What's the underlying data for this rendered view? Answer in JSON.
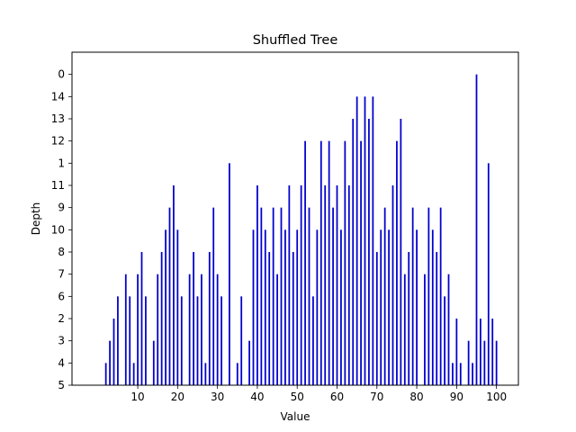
{
  "chart_data": {
    "type": "bar",
    "title": "Shuffled Tree",
    "xlabel": "Value",
    "ylabel": "Depth",
    "bar_color": "#0000cc",
    "grid": false,
    "xlim": [
      -6.5,
      105.5
    ],
    "xticks": [
      10,
      20,
      30,
      40,
      50,
      60,
      70,
      80,
      90,
      100
    ],
    "y_categories": [
      "5",
      "4",
      "3",
      "2",
      "6",
      "7",
      "8",
      "10",
      "9",
      "11",
      "1",
      "12",
      "13",
      "14",
      "0"
    ],
    "points": [
      {
        "x": 2,
        "y": "4"
      },
      {
        "x": 3,
        "y": "3"
      },
      {
        "x": 4,
        "y": "2"
      },
      {
        "x": 5,
        "y": "6"
      },
      {
        "x": 7,
        "y": "7"
      },
      {
        "x": 8,
        "y": "6"
      },
      {
        "x": 9,
        "y": "4"
      },
      {
        "x": 10,
        "y": "7"
      },
      {
        "x": 11,
        "y": "8"
      },
      {
        "x": 12,
        "y": "6"
      },
      {
        "x": 14,
        "y": "3"
      },
      {
        "x": 15,
        "y": "7"
      },
      {
        "x": 16,
        "y": "8"
      },
      {
        "x": 17,
        "y": "10"
      },
      {
        "x": 18,
        "y": "9"
      },
      {
        "x": 19,
        "y": "11"
      },
      {
        "x": 20,
        "y": "10"
      },
      {
        "x": 21,
        "y": "6"
      },
      {
        "x": 23,
        "y": "7"
      },
      {
        "x": 24,
        "y": "8"
      },
      {
        "x": 25,
        "y": "6"
      },
      {
        "x": 26,
        "y": "7"
      },
      {
        "x": 27,
        "y": "4"
      },
      {
        "x": 28,
        "y": "8"
      },
      {
        "x": 29,
        "y": "9"
      },
      {
        "x": 30,
        "y": "7"
      },
      {
        "x": 31,
        "y": "6"
      },
      {
        "x": 33,
        "y": "1"
      },
      {
        "x": 35,
        "y": "4"
      },
      {
        "x": 36,
        "y": "6"
      },
      {
        "x": 38,
        "y": "3"
      },
      {
        "x": 39,
        "y": "10"
      },
      {
        "x": 40,
        "y": "11"
      },
      {
        "x": 41,
        "y": "9"
      },
      {
        "x": 42,
        "y": "10"
      },
      {
        "x": 43,
        "y": "8"
      },
      {
        "x": 44,
        "y": "9"
      },
      {
        "x": 45,
        "y": "7"
      },
      {
        "x": 46,
        "y": "9"
      },
      {
        "x": 47,
        "y": "10"
      },
      {
        "x": 48,
        "y": "11"
      },
      {
        "x": 49,
        "y": "8"
      },
      {
        "x": 50,
        "y": "10"
      },
      {
        "x": 51,
        "y": "11"
      },
      {
        "x": 52,
        "y": "12"
      },
      {
        "x": 53,
        "y": "9"
      },
      {
        "x": 54,
        "y": "6"
      },
      {
        "x": 55,
        "y": "10"
      },
      {
        "x": 56,
        "y": "12"
      },
      {
        "x": 57,
        "y": "11"
      },
      {
        "x": 58,
        "y": "12"
      },
      {
        "x": 59,
        "y": "9"
      },
      {
        "x": 60,
        "y": "11"
      },
      {
        "x": 61,
        "y": "10"
      },
      {
        "x": 62,
        "y": "12"
      },
      {
        "x": 63,
        "y": "11"
      },
      {
        "x": 64,
        "y": "13"
      },
      {
        "x": 65,
        "y": "14"
      },
      {
        "x": 66,
        "y": "12"
      },
      {
        "x": 67,
        "y": "14"
      },
      {
        "x": 68,
        "y": "13"
      },
      {
        "x": 69,
        "y": "14"
      },
      {
        "x": 70,
        "y": "8"
      },
      {
        "x": 71,
        "y": "10"
      },
      {
        "x": 72,
        "y": "9"
      },
      {
        "x": 73,
        "y": "10"
      },
      {
        "x": 74,
        "y": "11"
      },
      {
        "x": 75,
        "y": "12"
      },
      {
        "x": 76,
        "y": "13"
      },
      {
        "x": 77,
        "y": "7"
      },
      {
        "x": 78,
        "y": "8"
      },
      {
        "x": 79,
        "y": "9"
      },
      {
        "x": 80,
        "y": "10"
      },
      {
        "x": 82,
        "y": "7"
      },
      {
        "x": 83,
        "y": "9"
      },
      {
        "x": 84,
        "y": "10"
      },
      {
        "x": 85,
        "y": "8"
      },
      {
        "x": 86,
        "y": "9"
      },
      {
        "x": 87,
        "y": "6"
      },
      {
        "x": 88,
        "y": "7"
      },
      {
        "x": 89,
        "y": "4"
      },
      {
        "x": 90,
        "y": "2"
      },
      {
        "x": 91,
        "y": "4"
      },
      {
        "x": 93,
        "y": "3"
      },
      {
        "x": 94,
        "y": "4"
      },
      {
        "x": 95,
        "y": "0"
      },
      {
        "x": 96,
        "y": "2"
      },
      {
        "x": 97,
        "y": "3"
      },
      {
        "x": 98,
        "y": "1"
      },
      {
        "x": 99,
        "y": "2"
      },
      {
        "x": 100,
        "y": "3"
      }
    ]
  }
}
